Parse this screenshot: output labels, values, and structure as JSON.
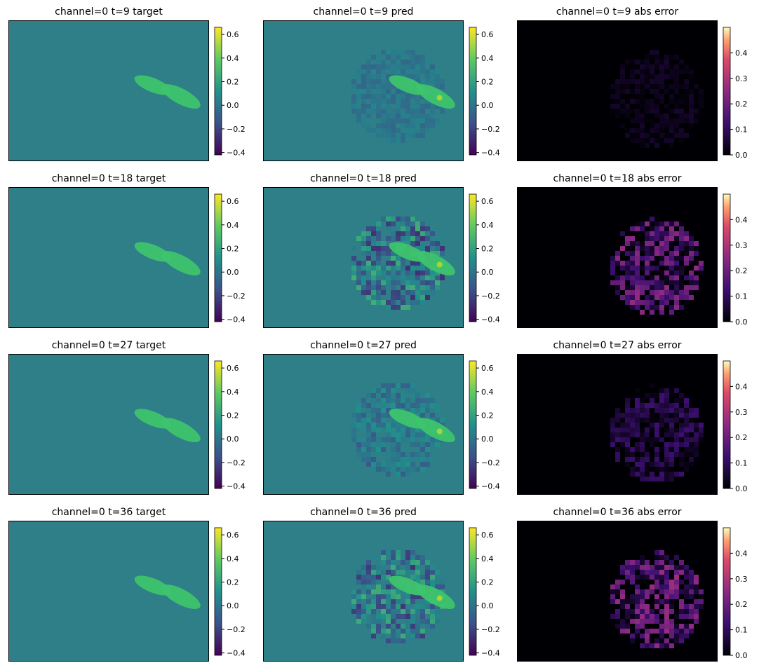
{
  "colors": {
    "background": "#ffffff",
    "flat_field": "#2e7f87",
    "error_background": "#000004",
    "plume_target": "#3ec46d",
    "plume_pred_high": "#a6d43a"
  },
  "chart_data": {
    "type": "heatmap",
    "layout": "4 rows x 3 columns grid of heatmaps with colorbars",
    "rows": [
      {
        "t": 9,
        "pred_noise": 0.04,
        "error_level": 0.03
      },
      {
        "t": 18,
        "pred_noise": 0.16,
        "error_level": 0.16
      },
      {
        "t": 27,
        "pred_noise": 0.07,
        "error_level": 0.08
      },
      {
        "t": 36,
        "pred_noise": 0.15,
        "error_level": 0.17
      }
    ],
    "panels": [
      {
        "title": "channel=0 t=9 target",
        "kind": "target",
        "colormap": "viridis",
        "vmin": -0.42,
        "vmax": 0.66,
        "ticks": [
          "0.6",
          "0.4",
          "0.2",
          "0.0",
          "−0.2",
          "−0.4"
        ],
        "tick_values": [
          0.6,
          0.4,
          0.2,
          0.0,
          -0.2,
          -0.4
        ]
      },
      {
        "title": "channel=0 t=9 pred",
        "kind": "pred",
        "colormap": "viridis",
        "vmin": -0.42,
        "vmax": 0.66,
        "ticks": [
          "0.6",
          "0.4",
          "0.2",
          "0.0",
          "−0.2",
          "−0.4"
        ],
        "tick_values": [
          0.6,
          0.4,
          0.2,
          0.0,
          -0.2,
          -0.4
        ]
      },
      {
        "title": "channel=0 t=9 abs error",
        "kind": "error",
        "colormap": "magma",
        "vmin": 0.0,
        "vmax": 0.5,
        "ticks": [
          "0.4",
          "0.3",
          "0.2",
          "0.1",
          "0.0"
        ],
        "tick_values": [
          0.4,
          0.3,
          0.2,
          0.1,
          0.0
        ]
      },
      {
        "title": "channel=0 t=18 target",
        "kind": "target",
        "colormap": "viridis",
        "vmin": -0.42,
        "vmax": 0.66,
        "ticks": [
          "0.6",
          "0.4",
          "0.2",
          "0.0",
          "−0.2",
          "−0.4"
        ],
        "tick_values": [
          0.6,
          0.4,
          0.2,
          0.0,
          -0.2,
          -0.4
        ]
      },
      {
        "title": "channel=0 t=18 pred",
        "kind": "pred",
        "colormap": "viridis",
        "vmin": -0.42,
        "vmax": 0.66,
        "ticks": [
          "0.6",
          "0.4",
          "0.2",
          "0.0",
          "−0.2",
          "−0.4"
        ],
        "tick_values": [
          0.6,
          0.4,
          0.2,
          0.0,
          -0.2,
          -0.4
        ]
      },
      {
        "title": "channel=0 t=18 abs error",
        "kind": "error",
        "colormap": "magma",
        "vmin": 0.0,
        "vmax": 0.5,
        "ticks": [
          "0.4",
          "0.3",
          "0.2",
          "0.1",
          "0.0"
        ],
        "tick_values": [
          0.4,
          0.3,
          0.2,
          0.1,
          0.0
        ]
      },
      {
        "title": "channel=0 t=27 target",
        "kind": "target",
        "colormap": "viridis",
        "vmin": -0.42,
        "vmax": 0.66,
        "ticks": [
          "0.6",
          "0.4",
          "0.2",
          "0.0",
          "−0.2",
          "−0.4"
        ],
        "tick_values": [
          0.6,
          0.4,
          0.2,
          0.0,
          -0.2,
          -0.4
        ]
      },
      {
        "title": "channel=0 t=27 pred",
        "kind": "pred",
        "colormap": "viridis",
        "vmin": -0.42,
        "vmax": 0.66,
        "ticks": [
          "0.6",
          "0.4",
          "0.2",
          "0.0",
          "−0.2",
          "−0.4"
        ],
        "tick_values": [
          0.6,
          0.4,
          0.2,
          0.0,
          -0.2,
          -0.4
        ]
      },
      {
        "title": "channel=0 t=27 abs error",
        "kind": "error",
        "colormap": "magma",
        "vmin": 0.0,
        "vmax": 0.5,
        "ticks": [
          "0.4",
          "0.3",
          "0.2",
          "0.1",
          "0.0"
        ],
        "tick_values": [
          0.4,
          0.3,
          0.2,
          0.1,
          0.0
        ]
      },
      {
        "title": "channel=0 t=36 target",
        "kind": "target",
        "colormap": "viridis",
        "vmin": -0.42,
        "vmax": 0.66,
        "ticks": [
          "0.6",
          "0.4",
          "0.2",
          "0.0",
          "−0.2",
          "−0.4"
        ],
        "tick_values": [
          0.6,
          0.4,
          0.2,
          0.0,
          -0.2,
          -0.4
        ]
      },
      {
        "title": "channel=0 t=36 pred",
        "kind": "pred",
        "colormap": "viridis",
        "vmin": -0.42,
        "vmax": 0.66,
        "ticks": [
          "0.6",
          "0.4",
          "0.2",
          "0.0",
          "−0.2",
          "−0.4"
        ],
        "tick_values": [
          0.6,
          0.4,
          0.2,
          0.0,
          -0.2,
          -0.4
        ]
      },
      {
        "title": "channel=0 t=36 abs error",
        "kind": "error",
        "colormap": "magma",
        "vmin": 0.0,
        "vmax": 0.5,
        "ticks": [
          "0.4",
          "0.3",
          "0.2",
          "0.1",
          "0.0"
        ],
        "tick_values": [
          0.4,
          0.3,
          0.2,
          0.1,
          0.0
        ]
      }
    ]
  }
}
